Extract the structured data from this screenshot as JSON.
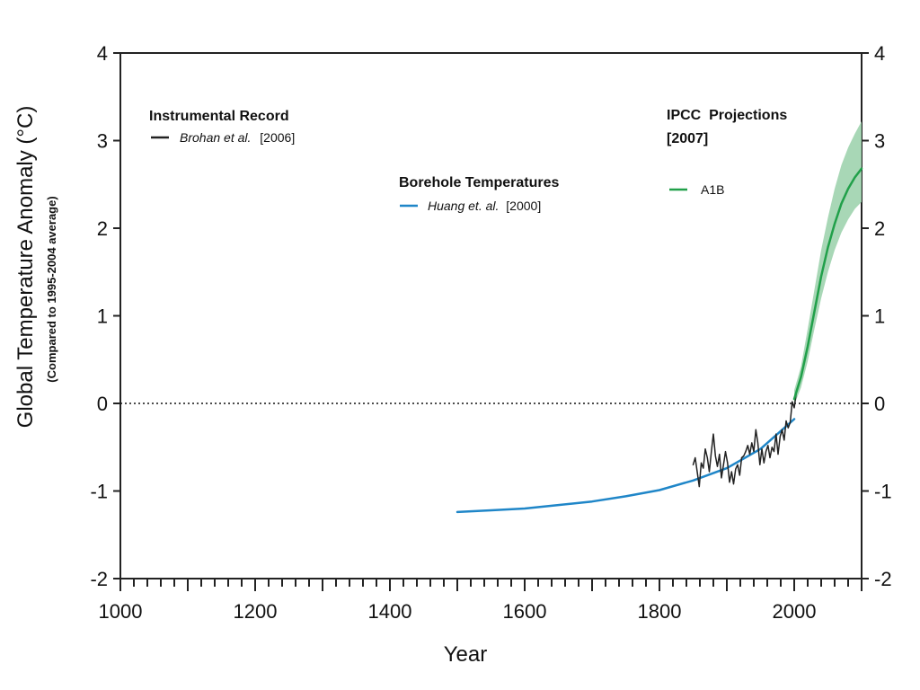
{
  "chart_data": {
    "type": "line",
    "title": "",
    "xlabel": "Year",
    "ylabel": "Global Temperature Anomaly (°C)",
    "ylabel_sub": "(Compared to 1995-2004 average)",
    "xlim": [
      1000,
      2100
    ],
    "ylim": [
      -2,
      4
    ],
    "x_ticks": [
      1000,
      1200,
      1400,
      1600,
      1800,
      2000
    ],
    "y_ticks": [
      -2,
      -1,
      0,
      1,
      2,
      3,
      4
    ],
    "reference_line": {
      "y": 0,
      "style": "dotted"
    },
    "legend_groups": [
      {
        "title": "Instrumental Record",
        "author": "Brohan et al.",
        "year": "[2006]",
        "color": "#222222"
      },
      {
        "title": "Borehole Temperatures",
        "author": "Huang et. al.",
        "year": "[2000]",
        "color": "#1f86c8"
      },
      {
        "title": "IPCC  Projections",
        "title2": "[2007]",
        "label": "A1B",
        "color": "#21a04a"
      }
    ],
    "series": [
      {
        "name": "Borehole Temperatures",
        "color": "#1f86c8",
        "x": [
          1500,
          1550,
          1600,
          1650,
          1700,
          1750,
          1800,
          1850,
          1900,
          1950,
          2000
        ],
        "y": [
          -1.24,
          -1.22,
          -1.2,
          -1.16,
          -1.12,
          -1.06,
          -0.99,
          -0.88,
          -0.74,
          -0.52,
          -0.18
        ]
      },
      {
        "name": "Instrumental Record",
        "color": "#222222",
        "x": [
          1850,
          1853,
          1856,
          1859,
          1862,
          1865,
          1868,
          1871,
          1874,
          1877,
          1880,
          1883,
          1886,
          1889,
          1892,
          1895,
          1898,
          1901,
          1904,
          1907,
          1910,
          1913,
          1916,
          1919,
          1922,
          1925,
          1928,
          1931,
          1934,
          1937,
          1940,
          1943,
          1946,
          1949,
          1952,
          1955,
          1958,
          1961,
          1964,
          1967,
          1970,
          1973,
          1976,
          1979,
          1982,
          1985,
          1988,
          1991,
          1994,
          1997,
          2000,
          2003
        ],
        "y": [
          -0.7,
          -0.62,
          -0.78,
          -0.95,
          -0.68,
          -0.74,
          -0.52,
          -0.62,
          -0.78,
          -0.55,
          -0.35,
          -0.6,
          -0.72,
          -0.58,
          -0.85,
          -0.7,
          -0.55,
          -0.68,
          -0.9,
          -0.78,
          -0.92,
          -0.75,
          -0.7,
          -0.82,
          -0.62,
          -0.6,
          -0.55,
          -0.48,
          -0.58,
          -0.45,
          -0.55,
          -0.3,
          -0.45,
          -0.7,
          -0.52,
          -0.68,
          -0.55,
          -0.48,
          -0.62,
          -0.5,
          -0.55,
          -0.35,
          -0.58,
          -0.38,
          -0.3,
          -0.42,
          -0.2,
          -0.28,
          -0.22,
          0.02,
          -0.05,
          0.12
        ]
      },
      {
        "name": "A1B",
        "color": "#21a04a",
        "band_color": "#9fd3ae",
        "x": [
          2000,
          2010,
          2020,
          2030,
          2040,
          2050,
          2060,
          2070,
          2080,
          2090,
          2100
        ],
        "y": [
          0.05,
          0.3,
          0.65,
          1.05,
          1.45,
          1.78,
          2.05,
          2.28,
          2.45,
          2.58,
          2.68
        ],
        "upper": [
          0.15,
          0.42,
          0.85,
          1.3,
          1.75,
          2.12,
          2.45,
          2.72,
          2.92,
          3.08,
          3.22
        ],
        "lower": [
          -0.02,
          0.18,
          0.48,
          0.85,
          1.2,
          1.5,
          1.75,
          1.95,
          2.1,
          2.22,
          2.3
        ]
      }
    ]
  }
}
